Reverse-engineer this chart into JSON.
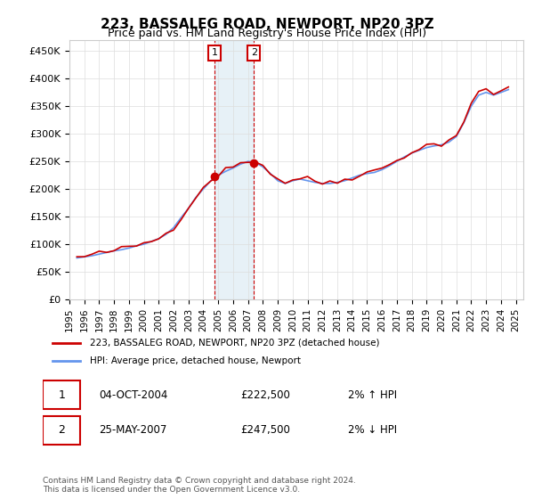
{
  "title": "223, BASSALEG ROAD, NEWPORT, NP20 3PZ",
  "subtitle": "Price paid vs. HM Land Registry's House Price Index (HPI)",
  "ylabel_ticks": [
    "£0",
    "£50K",
    "£100K",
    "£150K",
    "£200K",
    "£250K",
    "£300K",
    "£350K",
    "£400K",
    "£450K"
  ],
  "ylabel_values": [
    0,
    50000,
    100000,
    150000,
    200000,
    250000,
    300000,
    350000,
    400000,
    450000
  ],
  "ylim": [
    0,
    470000
  ],
  "xlim_start": 1995.0,
  "xlim_end": 2025.5,
  "hpi_color": "#6495ED",
  "price_color": "#CC0000",
  "marker1_year": 2004.75,
  "marker1_price": 222500,
  "marker2_year": 2007.4,
  "marker2_price": 247500,
  "legend_line1": "223, BASSALEG ROAD, NEWPORT, NP20 3PZ (detached house)",
  "legend_line2": "HPI: Average price, detached house, Newport",
  "annotation1_label": "1",
  "annotation1_date": "04-OCT-2004",
  "annotation1_price": "£222,500",
  "annotation1_hpi": "2% ↑ HPI",
  "annotation2_label": "2",
  "annotation2_date": "25-MAY-2007",
  "annotation2_price": "£247,500",
  "annotation2_hpi": "2% ↓ HPI",
  "footer": "Contains HM Land Registry data © Crown copyright and database right 2024.\nThis data is licensed under the Open Government Licence v3.0.",
  "background_color": "#ffffff",
  "grid_color": "#dddddd",
  "shade_color": "#d0e4f0"
}
